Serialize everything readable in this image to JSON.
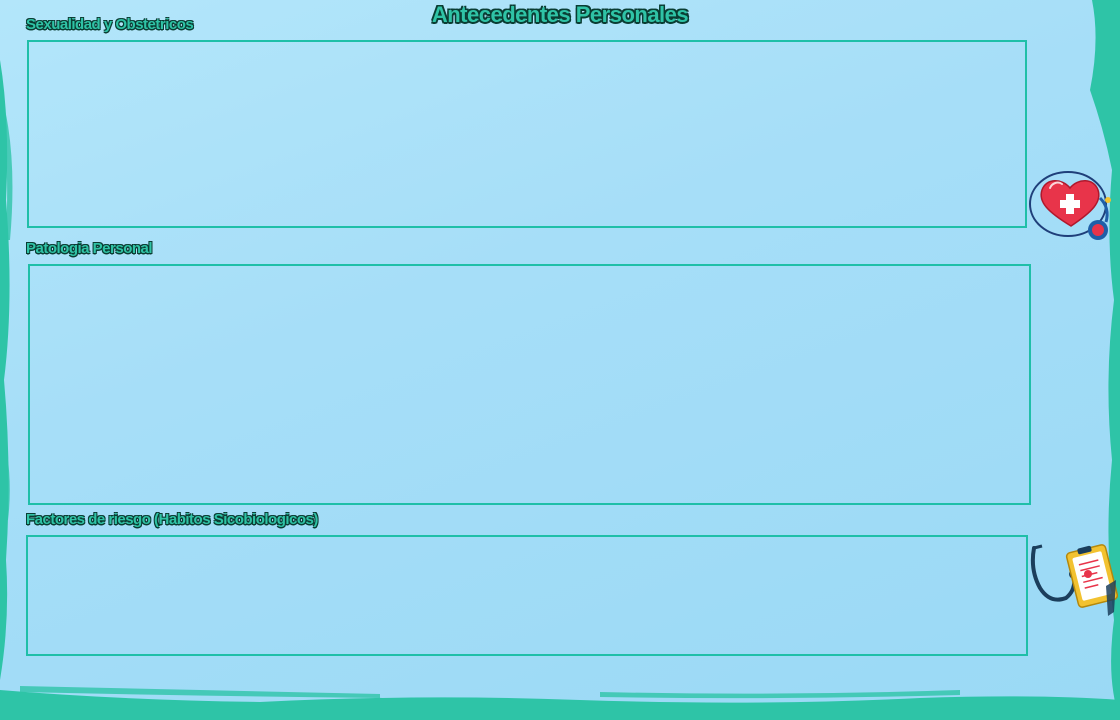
{
  "page": {
    "title": "Antecedentes Personales"
  },
  "sections": [
    {
      "label": "Sexualidad y Obstetricos",
      "value": ""
    },
    {
      "label": "Patologia Personal",
      "value": ""
    },
    {
      "label": "Factores de riesgo (Habitos Sicobiologicos)",
      "value": ""
    }
  ],
  "decorations": {
    "heart": "heart-stethoscope-icon",
    "clipboard": "medical-clipboard-stethoscope-icon"
  },
  "colors": {
    "background": "#a6def8",
    "accent": "#2fc3a6",
    "text_outline": "#0a3d33",
    "field_border": "#1fbfa8",
    "brush": "#2ec4a7"
  }
}
